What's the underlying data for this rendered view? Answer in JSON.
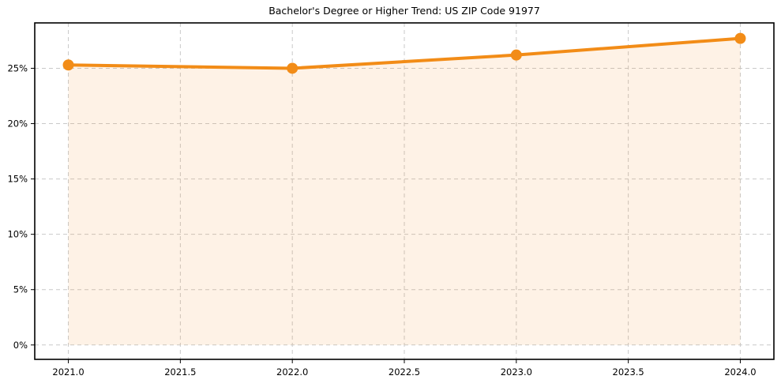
{
  "chart_data": {
    "type": "area",
    "title": "Bachelor's Degree or Higher Trend: US ZIP Code 91977",
    "xlabel": "",
    "ylabel": "",
    "x": [
      2021.0,
      2022.0,
      2023.0,
      2024.0
    ],
    "values": [
      25.3,
      25.0,
      26.2,
      27.7
    ],
    "fill_baseline": 0,
    "xlim": [
      2020.85,
      2024.15
    ],
    "ylim": [
      -1.3,
      29.1
    ],
    "x_ticks": [
      {
        "value": 2021.0,
        "label": "2021.0"
      },
      {
        "value": 2021.5,
        "label": "2021.5"
      },
      {
        "value": 2022.0,
        "label": "2022.0"
      },
      {
        "value": 2022.5,
        "label": "2022.5"
      },
      {
        "value": 2023.0,
        "label": "2023.0"
      },
      {
        "value": 2023.5,
        "label": "2023.5"
      },
      {
        "value": 2024.0,
        "label": "2024.0"
      }
    ],
    "y_ticks": [
      {
        "value": 0,
        "label": "0%"
      },
      {
        "value": 5,
        "label": "5%"
      },
      {
        "value": 10,
        "label": "10%"
      },
      {
        "value": 15,
        "label": "15%"
      },
      {
        "value": 20,
        "label": "20%"
      },
      {
        "value": 25,
        "label": "25%"
      }
    ],
    "grid": true,
    "grid_style": "dashed",
    "legend_position": "none",
    "colors": {
      "line": "#f28c17",
      "marker": "#f28c17",
      "fill": "rgba(242,140,23,0.11)",
      "grid": "#c9c9c9",
      "border": "#000000",
      "text": "#000000",
      "background": "#ffffff"
    }
  }
}
